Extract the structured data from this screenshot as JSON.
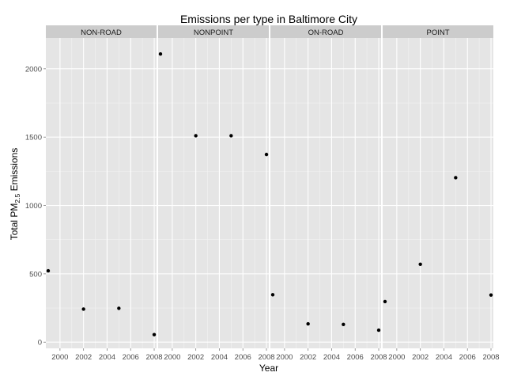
{
  "chart_data": {
    "type": "scatter",
    "title": "Emissions per type in Baltimore City",
    "xlabel": "Year",
    "ylabel": {
      "prefix": "Total PM",
      "subscript": "2.5",
      "suffix": " Emissions"
    },
    "xlim": [
      1998.8,
      2008.2
    ],
    "ylim": [
      -45,
      2225
    ],
    "x_ticks": [
      2000,
      2002,
      2004,
      2006,
      2008
    ],
    "y_ticks": [
      0,
      500,
      1000,
      1500,
      2000
    ],
    "grid": true,
    "legend": "none",
    "panels": [
      {
        "name": "NON-ROAD",
        "x": [
          1999,
          2002,
          2005,
          2008
        ],
        "y": [
          522,
          242,
          248,
          55
        ]
      },
      {
        "name": "NONPOINT",
        "x": [
          1999,
          2002,
          2005,
          2008
        ],
        "y": [
          2108,
          1510,
          1510,
          1373
        ]
      },
      {
        "name": "ON-ROAD",
        "x": [
          1999,
          2002,
          2005,
          2008
        ],
        "y": [
          347,
          134,
          130,
          88
        ]
      },
      {
        "name": "POINT",
        "x": [
          1999,
          2002,
          2005,
          2008
        ],
        "y": [
          297,
          570,
          1203,
          345
        ]
      }
    ]
  },
  "colors": {
    "panel_background": "#e5e5e5",
    "grid_major": "#ffffff",
    "grid_minor": "#f2f2f2",
    "strip_background": "#cccccc",
    "point": "#000000",
    "tick_text": "#4d4d4d"
  }
}
